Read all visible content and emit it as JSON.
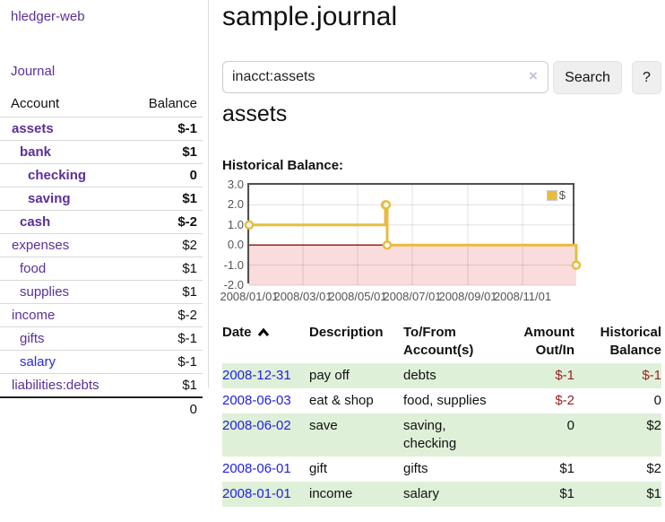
{
  "sidebar": {
    "brand": "hledger-web",
    "journal_link": "Journal",
    "accounts": {
      "header": {
        "account": "Account",
        "balance": "Balance"
      },
      "rows": [
        {
          "name": "assets",
          "balance": "$-1"
        },
        {
          "name": "bank",
          "balance": "$1"
        },
        {
          "name": "checking",
          "balance": "0"
        },
        {
          "name": "saving",
          "balance": "$1"
        },
        {
          "name": "cash",
          "balance": "$-2"
        },
        {
          "name": "expenses",
          "balance": "$2"
        },
        {
          "name": "food",
          "balance": "$1"
        },
        {
          "name": "supplies",
          "balance": "$1"
        },
        {
          "name": "income",
          "balance": "$-2"
        },
        {
          "name": "gifts",
          "balance": "$-1"
        },
        {
          "name": "salary",
          "balance": "$-1"
        },
        {
          "name": "liabilities:debts",
          "balance": "$1"
        }
      ],
      "total": "0"
    }
  },
  "main": {
    "title": "sample.journal",
    "search": {
      "value": "inacct:assets",
      "clear_icon": "×",
      "search_button": "Search",
      "help_button": "?"
    },
    "account_heading": "assets",
    "chart_title": "Historical Balance:",
    "register": {
      "headers": {
        "date": "Date",
        "description": "Description",
        "accounts": "To/From\nAccount(s)",
        "amount": "Amount\nOut/In",
        "balance": "Historical\nBalance"
      },
      "rows": [
        {
          "date": "2008-12-31",
          "description": "pay off",
          "accounts": "debts",
          "amount": "$-1",
          "balance": "$-1"
        },
        {
          "date": "2008-06-03",
          "description": "eat & shop",
          "accounts": "food, supplies",
          "amount": "$-2",
          "balance": "0"
        },
        {
          "date": "2008-06-02",
          "description": "save",
          "accounts": "saving, checking",
          "amount": "0",
          "balance": "$2"
        },
        {
          "date": "2008-06-01",
          "description": "gift",
          "accounts": "gifts",
          "amount": "$1",
          "balance": "$2"
        },
        {
          "date": "2008-01-01",
          "description": "income",
          "accounts": "salary",
          "amount": "$1",
          "balance": "$1"
        }
      ]
    }
  },
  "chart_data": {
    "type": "line",
    "title": "Historical Balance:",
    "series": [
      {
        "name": "$",
        "x": [
          "2008-01-01",
          "2008-06-01",
          "2008-06-02",
          "2008-06-03",
          "2008-12-31"
        ],
        "values": [
          1,
          2,
          2,
          0,
          -1
        ]
      }
    ],
    "step": true,
    "xlim": [
      "2008-01-01",
      "2008-12-31"
    ],
    "ylim": [
      -2,
      3
    ],
    "yticks": [
      "3.0",
      "2.0",
      "1.0",
      "0.0",
      "-1.0",
      "-2.0"
    ],
    "xticks": [
      "2008/01/01",
      "2008/03/01",
      "2008/05/01",
      "2008/07/01",
      "2008/09/01",
      "2008/11/01"
    ],
    "grid": true,
    "legend_position": "top-right",
    "line_color": "#e8bc3f",
    "marker_fill": "#ffffff",
    "zero_line_color": "#8b1010",
    "negative_region_color": "#fbdcdc"
  },
  "colors": {
    "accent_purple": "#5b3097",
    "link_blue": "#2222dd",
    "negative_red": "#962222",
    "negative_dim": "#c58585",
    "row_green": "#dff0d8"
  }
}
